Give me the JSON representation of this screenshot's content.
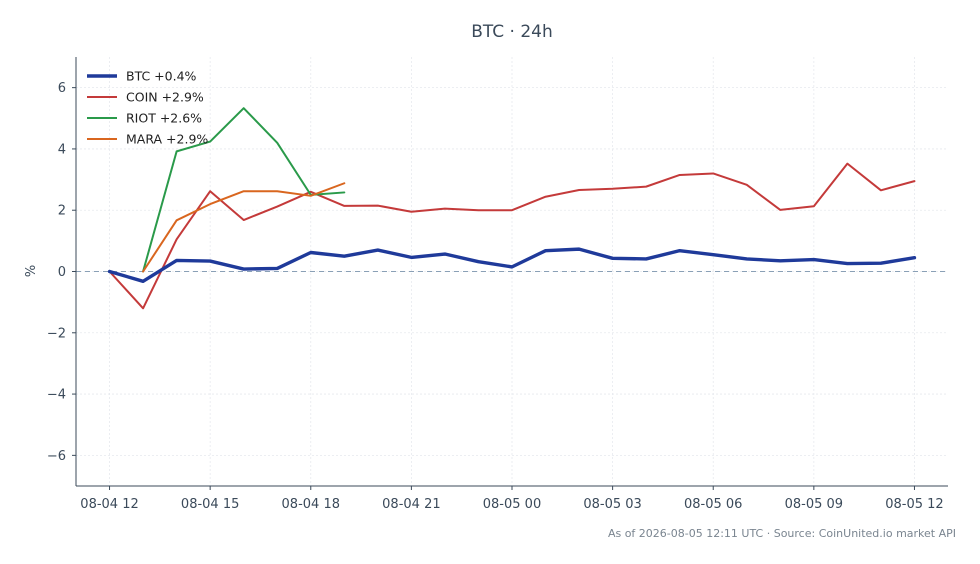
{
  "chart_data": {
    "type": "line",
    "title": "BTC · 24h",
    "ylabel": "%",
    "xlabel": "",
    "ylim": [
      -7,
      7
    ],
    "yticks": [
      -6,
      -4,
      -2,
      0,
      2,
      4,
      6
    ],
    "ytick_labels": [
      "−6",
      "−4",
      "−2",
      "0",
      "2",
      "4",
      "6"
    ],
    "x_start": "2026-08-04 11:00",
    "x_end": "2026-08-05 13:00",
    "xticks": [
      {
        "t": "2026-08-04 12:00",
        "label": "08-04 12"
      },
      {
        "t": "2026-08-04 15:00",
        "label": "08-04 15"
      },
      {
        "t": "2026-08-04 18:00",
        "label": "08-04 18"
      },
      {
        "t": "2026-08-04 21:00",
        "label": "08-04 21"
      },
      {
        "t": "2026-08-05 00:00",
        "label": "08-05 00"
      },
      {
        "t": "2026-08-05 03:00",
        "label": "08-05 03"
      },
      {
        "t": "2026-08-05 06:00",
        "label": "08-05 06"
      },
      {
        "t": "2026-08-05 09:00",
        "label": "08-05 09"
      },
      {
        "t": "2026-08-05 12:00",
        "label": "08-05 12"
      }
    ],
    "grid": true,
    "legend_position": "top-left",
    "baseline": 0,
    "baseline_color": "#8aa0b6",
    "series": [
      {
        "name": "BTC +0.4%",
        "color": "#1f3a9a",
        "emphasis": true,
        "x": [
          "2026-08-04 12:00",
          "2026-08-04 13:00",
          "2026-08-04 14:00",
          "2026-08-04 15:00",
          "2026-08-04 16:00",
          "2026-08-04 17:00",
          "2026-08-04 18:00",
          "2026-08-04 19:00",
          "2026-08-04 20:00",
          "2026-08-04 21:00",
          "2026-08-04 22:00",
          "2026-08-04 23:00",
          "2026-08-05 00:00",
          "2026-08-05 01:00",
          "2026-08-05 02:00",
          "2026-08-05 03:00",
          "2026-08-05 04:00",
          "2026-08-05 05:00",
          "2026-08-05 06:00",
          "2026-08-05 07:00",
          "2026-08-05 08:00",
          "2026-08-05 09:00",
          "2026-08-05 10:00",
          "2026-08-05 11:00",
          "2026-08-05 12:00"
        ],
        "values": [
          0.0,
          -0.32,
          0.36,
          0.34,
          0.08,
          0.1,
          0.62,
          0.5,
          0.7,
          0.46,
          0.57,
          0.32,
          0.15,
          0.68,
          0.73,
          0.43,
          0.41,
          0.68,
          0.55,
          0.41,
          0.35,
          0.39,
          0.26,
          0.27,
          0.45
        ]
      },
      {
        "name": "COIN +2.9%",
        "color": "#c43a3a",
        "x": [
          "2026-08-04 12:00",
          "2026-08-04 13:00",
          "2026-08-04 14:00",
          "2026-08-04 15:00",
          "2026-08-04 16:00",
          "2026-08-04 17:00",
          "2026-08-04 18:00",
          "2026-08-04 19:00",
          "2026-08-04 20:00",
          "2026-08-04 21:00",
          "2026-08-04 22:00",
          "2026-08-04 23:00",
          "2026-08-05 00:00",
          "2026-08-05 01:00",
          "2026-08-05 02:00",
          "2026-08-05 03:00",
          "2026-08-05 04:00",
          "2026-08-05 05:00",
          "2026-08-05 06:00",
          "2026-08-05 07:00",
          "2026-08-05 08:00",
          "2026-08-05 09:00",
          "2026-08-05 10:00",
          "2026-08-05 11:00",
          "2026-08-05 12:00"
        ],
        "values": [
          0.0,
          -1.2,
          1.05,
          2.62,
          1.68,
          2.12,
          2.6,
          2.14,
          2.15,
          1.95,
          2.05,
          2.0,
          2.0,
          2.44,
          2.66,
          2.7,
          2.77,
          3.15,
          3.2,
          2.83,
          2.01,
          2.13,
          3.52,
          2.65,
          2.95
        ]
      },
      {
        "name": "RIOT +2.6%",
        "color": "#2a9a4a",
        "x": [
          "2026-08-04 13:00",
          "2026-08-04 14:00",
          "2026-08-04 15:00",
          "2026-08-04 16:00",
          "2026-08-04 17:00",
          "2026-08-04 18:00",
          "2026-08-04 19:00"
        ],
        "values": [
          0.0,
          3.92,
          4.24,
          5.33,
          4.2,
          2.5,
          2.58
        ]
      },
      {
        "name": "MARA +2.9%",
        "color": "#d9661f",
        "x": [
          "2026-08-04 13:00",
          "2026-08-04 14:00",
          "2026-08-04 15:00",
          "2026-08-04 16:00",
          "2026-08-04 17:00",
          "2026-08-04 18:00",
          "2026-08-04 19:00"
        ],
        "values": [
          0.0,
          1.67,
          2.2,
          2.62,
          2.62,
          2.47,
          2.88
        ]
      }
    ],
    "footer": "As of 2026-08-05 12:11 UTC · Source: CoinUnited.io market API"
  }
}
